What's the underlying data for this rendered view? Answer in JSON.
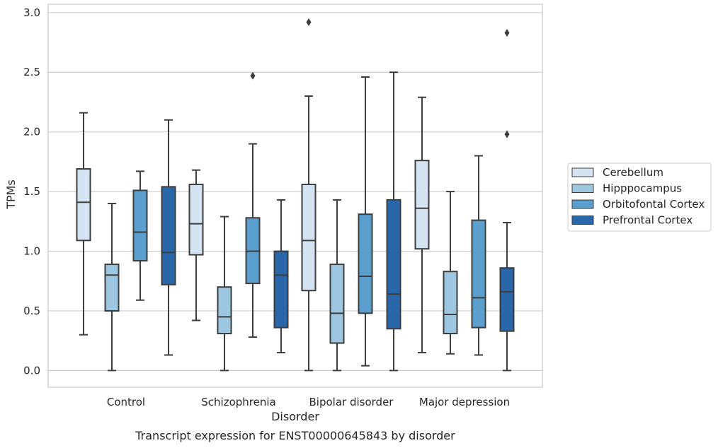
{
  "chart_data": {
    "type": "boxplot",
    "title": "Transcript expression for ENST00000645843 by disorder",
    "xlabel": "Disorder",
    "ylabel": "TPMs",
    "ylim": [
      -0.14,
      3.07
    ],
    "yticks": [
      "0.0",
      "0.5",
      "1.0",
      "1.5",
      "2.0",
      "2.5",
      "3.0"
    ],
    "grid": "horizontal",
    "legend_position": "right",
    "categories": [
      "Control",
      "Schizophrenia",
      "Bipolar disorder",
      "Major depression"
    ],
    "series": [
      {
        "name": "Cerebellum",
        "color": "#d3e3f1",
        "boxes": [
          {
            "whislo": 0.3,
            "q1": 1.09,
            "med": 1.41,
            "q3": 1.69,
            "whishi": 2.16,
            "fliers": []
          },
          {
            "whislo": 0.42,
            "q1": 0.97,
            "med": 1.23,
            "q3": 1.56,
            "whishi": 1.68,
            "fliers": []
          },
          {
            "whislo": 0.0,
            "q1": 0.67,
            "med": 1.09,
            "q3": 1.56,
            "whishi": 2.3,
            "fliers": [
              2.92
            ]
          },
          {
            "whislo": 0.15,
            "q1": 1.02,
            "med": 1.36,
            "q3": 1.76,
            "whishi": 2.29,
            "fliers": []
          }
        ]
      },
      {
        "name": "Hipppocampus",
        "color": "#9dc6e0",
        "boxes": [
          {
            "whislo": 0.0,
            "q1": 0.5,
            "med": 0.8,
            "q3": 0.89,
            "whishi": 1.4,
            "fliers": []
          },
          {
            "whislo": 0.0,
            "q1": 0.31,
            "med": 0.45,
            "q3": 0.7,
            "whishi": 1.29,
            "fliers": []
          },
          {
            "whislo": 0.0,
            "q1": 0.23,
            "med": 0.48,
            "q3": 0.89,
            "whishi": 1.43,
            "fliers": []
          },
          {
            "whislo": 0.14,
            "q1": 0.31,
            "med": 0.47,
            "q3": 0.83,
            "whishi": 1.5,
            "fliers": []
          }
        ]
      },
      {
        "name": "Orbitofontal Cortex",
        "color": "#5a9fcd",
        "boxes": [
          {
            "whislo": 0.59,
            "q1": 0.92,
            "med": 1.16,
            "q3": 1.51,
            "whishi": 1.67,
            "fliers": []
          },
          {
            "whislo": 0.28,
            "q1": 0.73,
            "med": 1.0,
            "q3": 1.28,
            "whishi": 1.9,
            "fliers": [
              2.47
            ]
          },
          {
            "whislo": 0.04,
            "q1": 0.48,
            "med": 0.79,
            "q3": 1.31,
            "whishi": 2.46,
            "fliers": []
          },
          {
            "whislo": 0.13,
            "q1": 0.36,
            "med": 0.61,
            "q3": 1.26,
            "whishi": 1.8,
            "fliers": []
          }
        ]
      },
      {
        "name": "Prefrontal Cortex",
        "color": "#2967aa",
        "boxes": [
          {
            "whislo": 0.13,
            "q1": 0.72,
            "med": 0.99,
            "q3": 1.54,
            "whishi": 2.1,
            "fliers": []
          },
          {
            "whislo": 0.15,
            "q1": 0.36,
            "med": 0.8,
            "q3": 1.0,
            "whishi": 1.43,
            "fliers": []
          },
          {
            "whislo": 0.0,
            "q1": 0.35,
            "med": 0.64,
            "q3": 1.43,
            "whishi": 2.5,
            "fliers": []
          },
          {
            "whislo": 0.0,
            "q1": 0.33,
            "med": 0.66,
            "q3": 0.86,
            "whishi": 1.24,
            "fliers": [
              1.98,
              2.83
            ]
          }
        ]
      }
    ]
  },
  "colors": {
    "line": "#3d3d3d",
    "grid": "#cccccc",
    "frame": "#cccccc"
  }
}
